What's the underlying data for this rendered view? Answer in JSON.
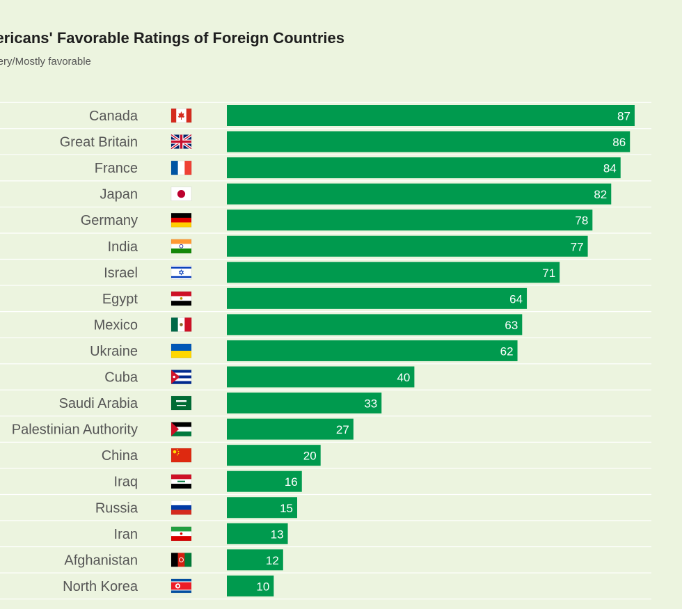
{
  "header": {
    "title": "Americans' Favorable Ratings of Foreign Countries",
    "subtitle": "% Very/Mostly favorable"
  },
  "colors": {
    "background": "#ecf4df",
    "bar": "#009a4e",
    "gridline": "#ffffff",
    "label": "#555555",
    "value_label": "#ffffff"
  },
  "chart_data": {
    "type": "bar",
    "orientation": "horizontal",
    "title": "Americans' Favorable Ratings of Foreign Countries",
    "subtitle": "% Very/Mostly favorable",
    "xlim": [
      0,
      100
    ],
    "grid": true,
    "categories": [
      "Canada",
      "Great Britain",
      "France",
      "Japan",
      "Germany",
      "India",
      "Israel",
      "Egypt",
      "Mexico",
      "Ukraine",
      "Cuba",
      "Saudi Arabia",
      "Palestinian Authority",
      "China",
      "Iraq",
      "Russia",
      "Iran",
      "Afghanistan",
      "North Korea"
    ],
    "values": [
      87,
      86,
      84,
      82,
      78,
      77,
      71,
      64,
      63,
      62,
      40,
      33,
      27,
      20,
      16,
      15,
      13,
      12,
      10
    ],
    "flags": [
      "canada-flag-icon",
      "great-britain-flag-icon",
      "france-flag-icon",
      "japan-flag-icon",
      "germany-flag-icon",
      "india-flag-icon",
      "israel-flag-icon",
      "egypt-flag-icon",
      "mexico-flag-icon",
      "ukraine-flag-icon",
      "cuba-flag-icon",
      "saudi-arabia-flag-icon",
      "palestinian-authority-flag-icon",
      "china-flag-icon",
      "iraq-flag-icon",
      "russia-flag-icon",
      "iran-flag-icon",
      "afghanistan-flag-icon",
      "north-korea-flag-icon"
    ]
  }
}
